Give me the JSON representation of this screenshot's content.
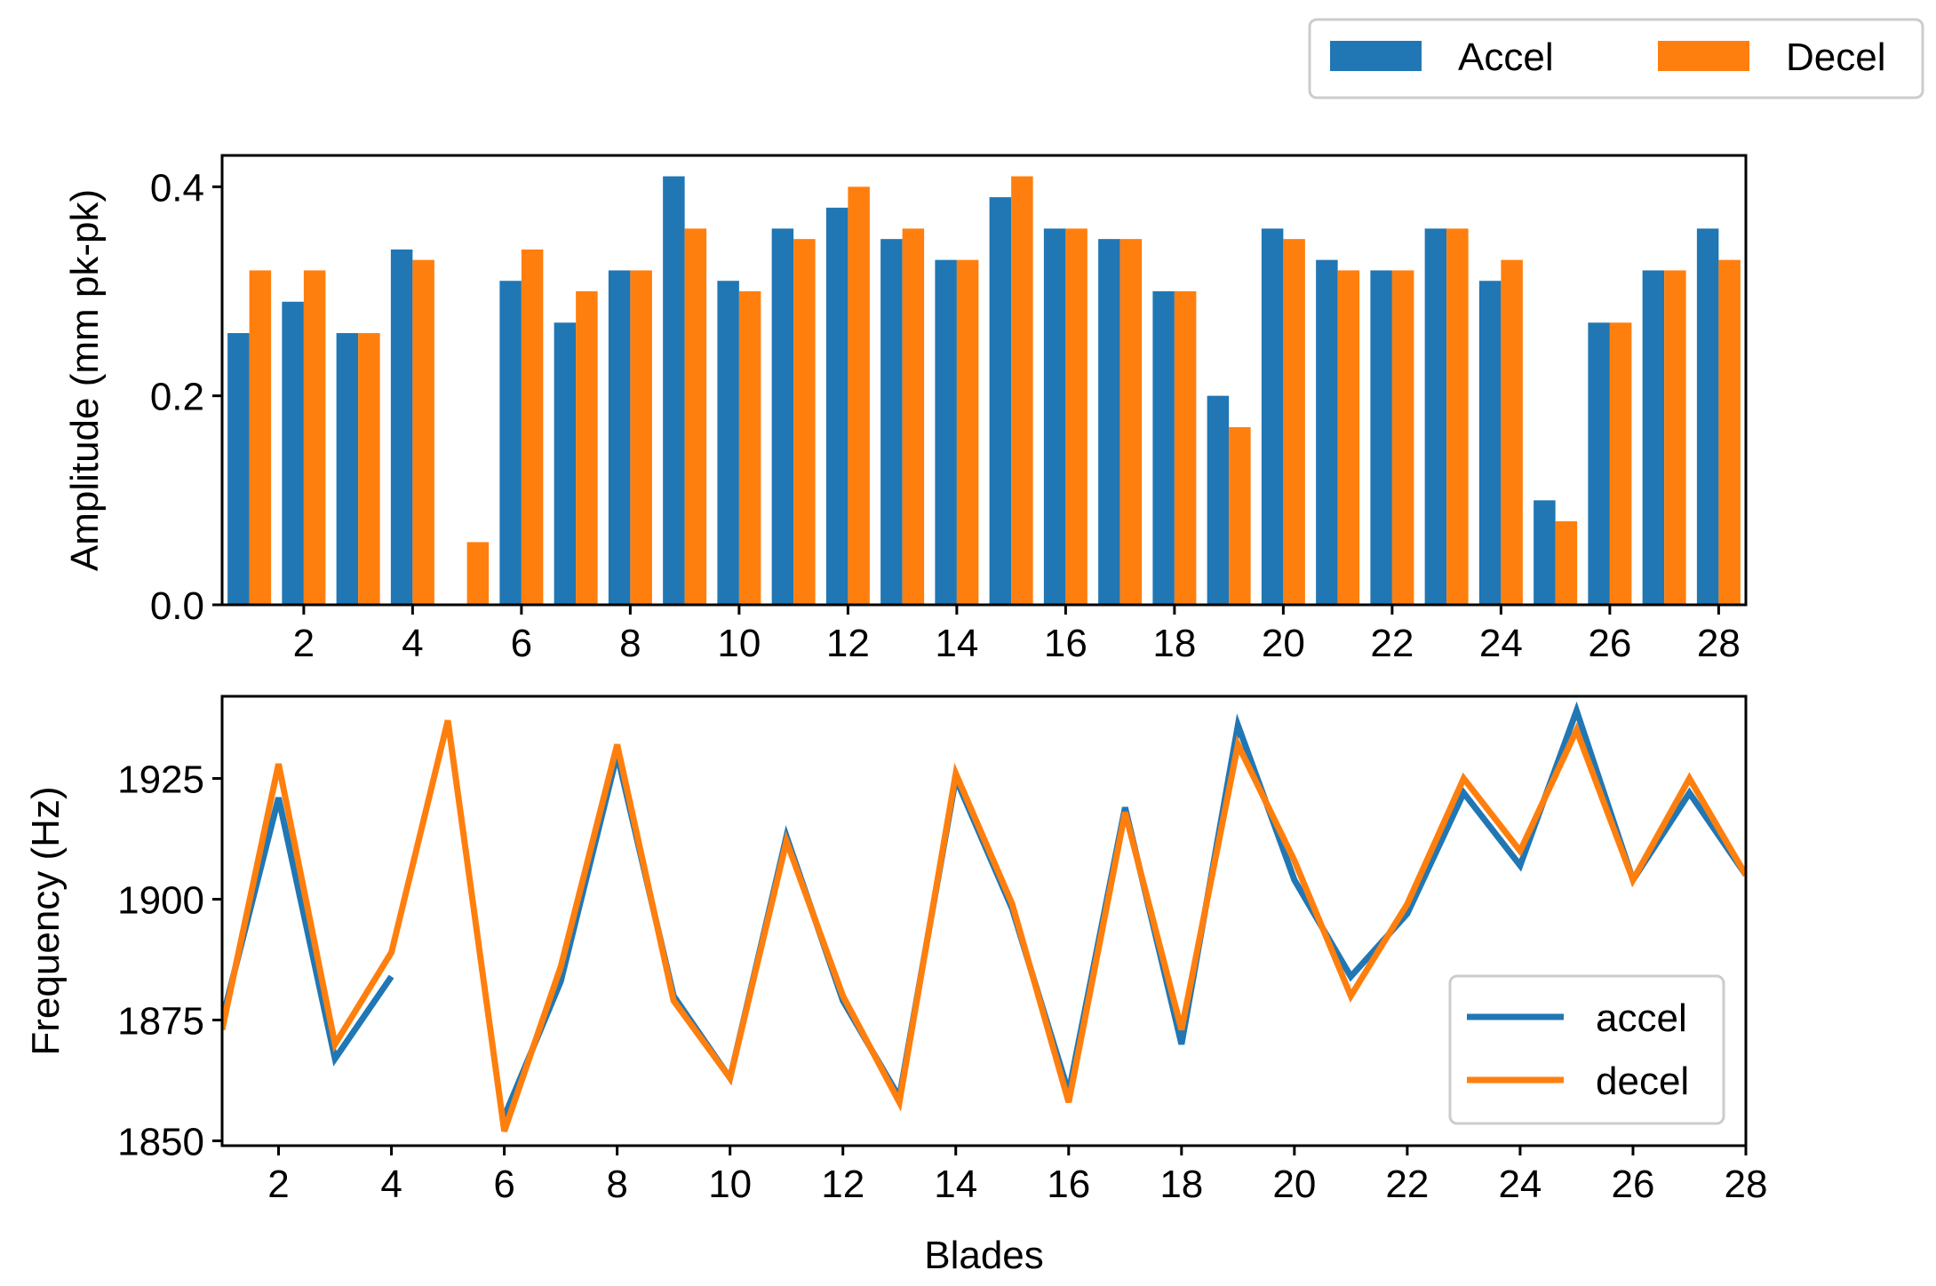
{
  "colors": {
    "accel": "#2077b4",
    "decel": "#ff7f0e",
    "axis": "#000000",
    "legend_border": "#cccccc"
  },
  "top_legend": {
    "items": [
      "Accel",
      "Decel"
    ]
  },
  "chart_data": [
    {
      "type": "bar",
      "ylabel": "Amplitude (mm pk-pk)",
      "xlabel": "",
      "xlim": [
        0.5,
        28.5
      ],
      "ylim": [
        0,
        0.43
      ],
      "xticks": [
        2,
        4,
        6,
        8,
        10,
        12,
        14,
        16,
        18,
        20,
        22,
        24,
        26,
        28
      ],
      "xticklabels": [
        "2",
        "4",
        "6",
        "8",
        "10",
        "12",
        "14",
        "16",
        "18",
        "20",
        "22",
        "24",
        "26",
        "28"
      ],
      "yticks": [
        0.0,
        0.2,
        0.4
      ],
      "yticklabels": [
        "0.0",
        "0.2",
        "0.4"
      ],
      "categories": [
        1,
        2,
        3,
        4,
        5,
        6,
        7,
        8,
        9,
        10,
        11,
        12,
        13,
        14,
        15,
        16,
        17,
        18,
        19,
        20,
        21,
        22,
        23,
        24,
        25,
        26,
        27,
        28
      ],
      "series": [
        {
          "name": "Accel",
          "values": [
            0.26,
            0.29,
            0.26,
            0.34,
            0.0,
            0.31,
            0.27,
            0.32,
            0.41,
            0.31,
            0.36,
            0.38,
            0.35,
            0.33,
            0.39,
            0.36,
            0.35,
            0.3,
            0.2,
            0.36,
            0.33,
            0.32,
            0.36,
            0.31,
            0.1,
            0.27,
            0.32,
            0.36
          ]
        },
        {
          "name": "Decel",
          "values": [
            0.32,
            0.32,
            0.26,
            0.33,
            0.06,
            0.34,
            0.3,
            0.32,
            0.36,
            0.3,
            0.35,
            0.4,
            0.36,
            0.33,
            0.41,
            0.36,
            0.35,
            0.3,
            0.17,
            0.35,
            0.32,
            0.32,
            0.36,
            0.33,
            0.08,
            0.27,
            0.32,
            0.33
          ]
        }
      ]
    },
    {
      "type": "line",
      "ylabel": "Frequency (Hz)",
      "xlabel": "Blades",
      "xlim": [
        1,
        28
      ],
      "ylim": [
        1849,
        1942
      ],
      "xticks": [
        2,
        4,
        6,
        8,
        10,
        12,
        14,
        16,
        18,
        20,
        22,
        24,
        26,
        28
      ],
      "xticklabels": [
        "2",
        "4",
        "6",
        "8",
        "10",
        "12",
        "14",
        "16",
        "18",
        "20",
        "22",
        "24",
        "26",
        "28"
      ],
      "yticks": [
        1850,
        1875,
        1900,
        1925
      ],
      "yticklabels": [
        "1850",
        "1875",
        "1900",
        "1925"
      ],
      "legend": [
        "accel",
        "decel"
      ],
      "series": [
        {
          "name": "accel",
          "x": [
            1,
            2,
            3,
            4
          ],
          "y": [
            1875,
            1921,
            1867,
            1884
          ]
        },
        {
          "name": "accel",
          "x": [
            6,
            7,
            8,
            9,
            10,
            11,
            12,
            13,
            14,
            15,
            16,
            17,
            18,
            19,
            20,
            21,
            22,
            23,
            24,
            25,
            26,
            27,
            28
          ],
          "y": [
            1855,
            1883,
            1930,
            1880,
            1863,
            1913,
            1879,
            1859,
            1925,
            1898,
            1860,
            1919,
            1870,
            1936,
            1904,
            1884,
            1897,
            1922,
            1907,
            1939,
            1904,
            1922,
            1905
          ]
        },
        {
          "name": "decel",
          "x": [
            1,
            2,
            3,
            4,
            5,
            6,
            7,
            8,
            9,
            10,
            11,
            12,
            13,
            14,
            15,
            16,
            17,
            18,
            19,
            20,
            21,
            22,
            23,
            24,
            25,
            26,
            27,
            28
          ],
          "y": [
            1873,
            1928,
            1870,
            1889,
            1937,
            1852,
            1886,
            1932,
            1879,
            1863,
            1912,
            1880,
            1858,
            1926,
            1899,
            1858,
            1918,
            1873,
            1932,
            1908,
            1880,
            1899,
            1925,
            1910,
            1935,
            1904,
            1925,
            1905
          ]
        }
      ]
    }
  ]
}
